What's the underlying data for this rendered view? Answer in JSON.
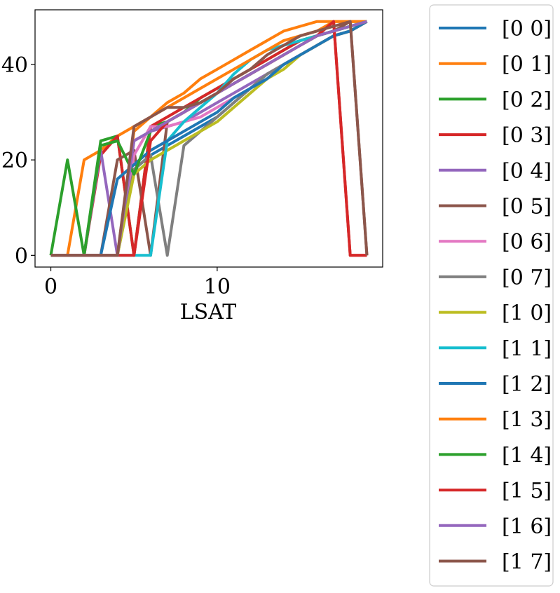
{
  "chart_data": {
    "type": "line",
    "xlabel": "LSAT",
    "ylabel": "",
    "title": "",
    "xlim": [
      -0.95,
      19.95
    ],
    "ylim": [
      -2.45,
      51.45
    ],
    "xticks": [
      0,
      10
    ],
    "yticks": [
      0,
      20,
      40
    ],
    "grid": false,
    "legend_position": "outside-right",
    "x": [
      0,
      1,
      2,
      3,
      4,
      5,
      6,
      7,
      8,
      9,
      10,
      11,
      12,
      13,
      14,
      15,
      16,
      17,
      18,
      19
    ],
    "series": [
      {
        "name": "[0 0]",
        "color": "#1f77b4",
        "values": [
          0,
          0,
          0,
          0,
          0,
          18,
          21,
          23,
          25,
          27,
          29,
          32,
          35,
          38,
          40,
          42,
          44,
          46,
          47,
          49
        ]
      },
      {
        "name": "[0 1]",
        "color": "#ff7f0e",
        "values": [
          0,
          0,
          20,
          22,
          25,
          27,
          29,
          32,
          34,
          37,
          39,
          41,
          43,
          45,
          47,
          48,
          49,
          49,
          49,
          49
        ]
      },
      {
        "name": "[0 2]",
        "color": "#2ca02c",
        "values": [
          0,
          20,
          0,
          24,
          25,
          0,
          27,
          28,
          30,
          33,
          35,
          37,
          39,
          41,
          43,
          45,
          46,
          47,
          48,
          49
        ]
      },
      {
        "name": "[0 3]",
        "color": "#d62728",
        "values": [
          0,
          0,
          0,
          21,
          25,
          0,
          27,
          29,
          31,
          33,
          35,
          37,
          39,
          41,
          43,
          45,
          46,
          49,
          0,
          0
        ]
      },
      {
        "name": "[0 4]",
        "color": "#9467bd",
        "values": [
          0,
          0,
          0,
          22,
          0,
          24,
          26,
          27,
          28,
          30,
          32,
          34,
          36,
          38,
          40,
          42,
          44,
          46,
          47,
          49
        ]
      },
      {
        "name": "[0 5]",
        "color": "#8c564b",
        "values": [
          0,
          0,
          0,
          0,
          20,
          22,
          0,
          28,
          30,
          32,
          34,
          36,
          38,
          40,
          42,
          44,
          46,
          47,
          49,
          0
        ]
      },
      {
        "name": "[0 6]",
        "color": "#e377c2",
        "values": [
          0,
          0,
          0,
          0,
          0,
          21,
          27,
          27,
          28,
          29,
          31,
          33,
          35,
          38,
          40,
          42,
          44,
          46,
          47,
          49
        ]
      },
      {
        "name": "[0 7]",
        "color": "#7f7f7f",
        "values": [
          0,
          0,
          0,
          0,
          0,
          18,
          21,
          0,
          23,
          26,
          29,
          32,
          35,
          38,
          40,
          42,
          44,
          46,
          47,
          49
        ]
      },
      {
        "name": "[1 0]",
        "color": "#bcbd22",
        "values": [
          0,
          0,
          0,
          0,
          0,
          17,
          20,
          22,
          24,
          26,
          28,
          31,
          34,
          37,
          39,
          42,
          44,
          46,
          47,
          49
        ]
      },
      {
        "name": "[1 1]",
        "color": "#17becf",
        "values": [
          0,
          0,
          0,
          0,
          0,
          0,
          0,
          24,
          28,
          31,
          34,
          38,
          41,
          43,
          44,
          45,
          46,
          47,
          48,
          49
        ]
      },
      {
        "name": "[1 2]",
        "color": "#1f77b4",
        "values": [
          0,
          0,
          0,
          0,
          16,
          19,
          22,
          24,
          26,
          28,
          30,
          33,
          35,
          37,
          40,
          42,
          44,
          46,
          47,
          49
        ]
      },
      {
        "name": "[1 3]",
        "color": "#ff7f0e",
        "values": [
          0,
          0,
          0,
          0,
          0,
          26,
          29,
          31,
          33,
          35,
          37,
          39,
          41,
          43,
          45,
          46,
          47,
          49,
          49,
          49
        ]
      },
      {
        "name": "[1 4]",
        "color": "#2ca02c",
        "values": [
          0,
          0,
          0,
          23,
          24,
          17,
          26,
          28,
          30,
          32,
          34,
          36,
          38,
          40,
          42,
          44,
          46,
          47,
          48,
          49
        ]
      },
      {
        "name": "[1 5]",
        "color": "#d62728",
        "values": [
          0,
          0,
          0,
          0,
          0,
          0,
          24,
          28,
          30,
          32,
          34,
          36,
          38,
          40,
          42,
          44,
          46,
          49,
          0,
          0
        ]
      },
      {
        "name": "[1 6]",
        "color": "#9467bd",
        "values": [
          0,
          0,
          0,
          0,
          0,
          24,
          26,
          28,
          30,
          32,
          34,
          36,
          38,
          40,
          42,
          44,
          46,
          47,
          48,
          49
        ]
      },
      {
        "name": "[1 7]",
        "color": "#8c564b",
        "values": [
          0,
          0,
          0,
          0,
          0,
          27,
          29,
          31,
          31,
          32,
          34,
          37,
          39,
          42,
          44,
          46,
          47,
          48,
          49,
          0
        ]
      }
    ]
  }
}
